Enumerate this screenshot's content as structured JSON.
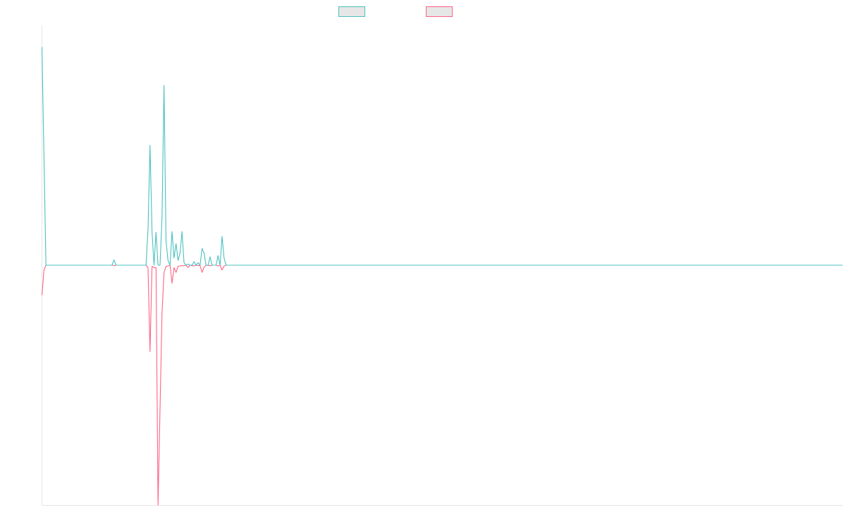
{
  "chart_data": {
    "type": "line",
    "title": "",
    "xlabel": "",
    "ylabel": "",
    "grid": false,
    "legend_position": "top-center",
    "ylim": [
      -1.0,
      1.0
    ],
    "xlim": [
      0,
      400
    ],
    "series": [
      {
        "name": "",
        "color": "#4bc0c0",
        "points": [
          [
            0,
            0.91
          ],
          [
            2,
            0
          ],
          [
            35,
            0
          ],
          [
            36,
            0.022
          ],
          [
            37,
            0
          ],
          [
            52,
            0
          ],
          [
            53,
            0.15
          ],
          [
            54,
            0.5
          ],
          [
            55,
            0.14
          ],
          [
            56,
            0.0
          ],
          [
            57,
            0.137
          ],
          [
            58,
            0.0
          ],
          [
            59,
            0.0
          ],
          [
            60,
            0.2
          ],
          [
            61,
            0.75
          ],
          [
            62,
            0.1
          ],
          [
            63,
            0.02
          ],
          [
            64,
            0.0
          ],
          [
            65,
            0.14
          ],
          [
            66,
            0.03
          ],
          [
            67,
            0.09
          ],
          [
            68,
            0.02
          ],
          [
            69,
            0.05
          ],
          [
            70,
            0.14
          ],
          [
            71,
            0.01
          ],
          [
            72,
            0.0
          ],
          [
            73,
            0.005
          ],
          [
            74,
            0.0
          ],
          [
            75,
            0.0
          ],
          [
            76,
            0.015
          ],
          [
            77,
            0.0
          ],
          [
            78,
            0.01
          ],
          [
            79,
            0.0
          ],
          [
            80,
            0.07
          ],
          [
            81,
            0.05
          ],
          [
            82,
            0.0
          ],
          [
            83,
            0.0
          ],
          [
            84,
            0.035
          ],
          [
            85,
            0.0
          ],
          [
            86,
            0.0
          ],
          [
            87,
            0.0
          ],
          [
            88,
            0.04
          ],
          [
            89,
            0.0
          ],
          [
            90,
            0.12
          ],
          [
            91,
            0.03
          ],
          [
            92,
            0.0
          ],
          [
            400,
            0
          ]
        ]
      },
      {
        "name": "",
        "color": "#ff6384",
        "points": [
          [
            0,
            -0.125
          ],
          [
            1,
            -0.02
          ],
          [
            2,
            0
          ],
          [
            35,
            0
          ],
          [
            36,
            -0.002
          ],
          [
            37,
            0
          ],
          [
            52,
            0
          ],
          [
            53,
            -0.01
          ],
          [
            54,
            -0.36
          ],
          [
            55,
            -0.005
          ],
          [
            56,
            -0.01
          ],
          [
            57,
            -0.01
          ],
          [
            58,
            -1.0
          ],
          [
            59,
            -0.6
          ],
          [
            60,
            -0.2
          ],
          [
            61,
            -0.03
          ],
          [
            62,
            -0.005
          ],
          [
            63,
            -0.003
          ],
          [
            64,
            -0.0
          ],
          [
            65,
            -0.075
          ],
          [
            66,
            -0.01
          ],
          [
            67,
            -0.03
          ],
          [
            68,
            -0.005
          ],
          [
            69,
            -0.003
          ],
          [
            70,
            -0.002
          ],
          [
            71,
            -0.002
          ],
          [
            72,
            -0.0
          ],
          [
            73,
            -0.01
          ],
          [
            74,
            0.0
          ],
          [
            75,
            -0.002
          ],
          [
            76,
            -0.003
          ],
          [
            77,
            0.0
          ],
          [
            78,
            -0.002
          ],
          [
            79,
            -0.001
          ],
          [
            80,
            -0.03
          ],
          [
            81,
            -0.008
          ],
          [
            82,
            0.0
          ],
          [
            83,
            -0.001
          ],
          [
            84,
            -0.002
          ],
          [
            85,
            0.0
          ],
          [
            86,
            0.0
          ],
          [
            87,
            0.0
          ],
          [
            88,
            -0.003
          ],
          [
            89,
            0.0
          ],
          [
            90,
            -0.02
          ],
          [
            91,
            -0.003
          ],
          [
            92,
            0.0
          ],
          [
            93,
            0.0
          ],
          [
            400,
            0
          ]
        ]
      }
    ]
  }
}
